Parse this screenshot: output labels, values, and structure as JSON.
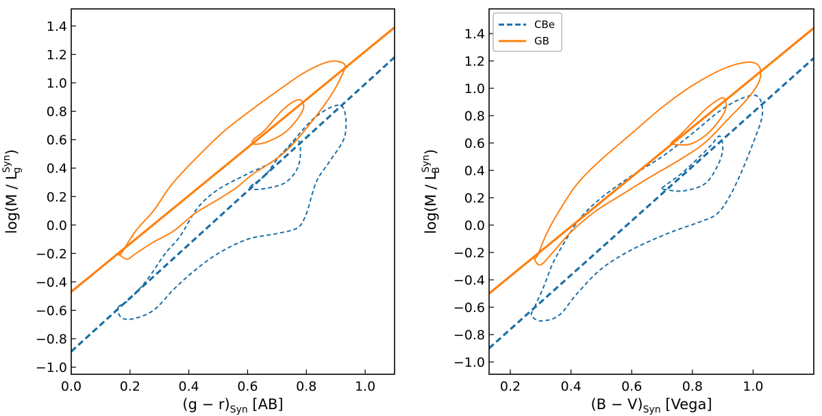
{
  "chart_data": [
    {
      "type": "line",
      "xlabel": "(g − r)",
      "xlabel_sub": "Syn",
      "xlabel_suffix": " [AB]",
      "ylabel_prefix": "log(M / L",
      "ylabel_sub": "g",
      "ylabel_sup": "Syn",
      "ylabel_suffix": ")",
      "xlim": [
        0.0,
        1.1
      ],
      "ylim": [
        -1.05,
        1.52
      ],
      "xticks": [
        0.0,
        0.2,
        0.4,
        0.6,
        0.8,
        1.0
      ],
      "yticks": [
        -1.0,
        -0.8,
        -0.6,
        -0.4,
        -0.2,
        0.0,
        0.2,
        0.4,
        0.6,
        0.8,
        1.0,
        1.2,
        1.4
      ],
      "tick_labels_x": [
        "0.0",
        "0.2",
        "0.4",
        "0.6",
        "0.8",
        "1.0"
      ],
      "tick_labels_y": [
        "−1.0",
        "−0.8",
        "−0.6",
        "−0.4",
        "−0.2",
        "0.0",
        "0.2",
        "0.4",
        "0.6",
        "0.8",
        "1.0",
        "1.2",
        "1.4"
      ],
      "series": [
        {
          "name": "CBe",
          "color": "#1a6ea5",
          "style": "dashed",
          "fit": {
            "x": [
              0.0,
              1.1
            ],
            "y": [
              -0.89,
              1.18
            ]
          },
          "contours": [
            [
              [
                0.16,
                -0.58
              ],
              [
                0.2,
                -0.52
              ],
              [
                0.26,
                -0.38
              ],
              [
                0.32,
                -0.2
              ],
              [
                0.37,
                -0.08
              ],
              [
                0.43,
                0.12
              ],
              [
                0.5,
                0.25
              ],
              [
                0.6,
                0.36
              ],
              [
                0.7,
                0.47
              ],
              [
                0.82,
                0.74
              ],
              [
                0.9,
                0.84
              ],
              [
                0.93,
                0.8
              ],
              [
                0.93,
                0.62
              ],
              [
                0.88,
                0.45
              ],
              [
                0.84,
                0.33
              ],
              [
                0.82,
                0.22
              ],
              [
                0.8,
                0.08
              ],
              [
                0.77,
                -0.02
              ],
              [
                0.7,
                -0.06
              ],
              [
                0.6,
                -0.1
              ],
              [
                0.5,
                -0.2
              ],
              [
                0.42,
                -0.32
              ],
              [
                0.35,
                -0.45
              ],
              [
                0.28,
                -0.6
              ],
              [
                0.21,
                -0.66
              ],
              [
                0.17,
                -0.65
              ]
            ],
            [
              [
                0.61,
                0.27
              ],
              [
                0.66,
                0.35
              ],
              [
                0.7,
                0.46
              ],
              [
                0.74,
                0.55
              ],
              [
                0.77,
                0.6
              ],
              [
                0.78,
                0.52
              ],
              [
                0.77,
                0.4
              ],
              [
                0.73,
                0.3
              ],
              [
                0.67,
                0.26
              ],
              [
                0.62,
                0.25
              ]
            ]
          ]
        },
        {
          "name": "GB",
          "color": "#ff7f0e",
          "style": "solid",
          "fit": {
            "x": [
              0.0,
              1.1
            ],
            "y": [
              -0.47,
              1.39
            ]
          },
          "contours": [
            [
              [
                0.17,
                -0.2
              ],
              [
                0.22,
                -0.04
              ],
              [
                0.28,
                0.1
              ],
              [
                0.34,
                0.28
              ],
              [
                0.42,
                0.46
              ],
              [
                0.52,
                0.66
              ],
              [
                0.62,
                0.82
              ],
              [
                0.72,
                0.97
              ],
              [
                0.8,
                1.08
              ],
              [
                0.88,
                1.15
              ],
              [
                0.93,
                1.13
              ],
              [
                0.92,
                1.05
              ],
              [
                0.88,
                0.9
              ],
              [
                0.8,
                0.68
              ],
              [
                0.72,
                0.5
              ],
              [
                0.62,
                0.36
              ],
              [
                0.56,
                0.26
              ],
              [
                0.5,
                0.18
              ],
              [
                0.42,
                0.08
              ],
              [
                0.35,
                -0.04
              ],
              [
                0.28,
                -0.12
              ],
              [
                0.22,
                -0.2
              ],
              [
                0.19,
                -0.24
              ],
              [
                0.16,
                -0.2
              ]
            ],
            [
              [
                0.62,
                0.6
              ],
              [
                0.66,
                0.67
              ],
              [
                0.71,
                0.79
              ],
              [
                0.75,
                0.86
              ],
              [
                0.78,
                0.88
              ],
              [
                0.79,
                0.82
              ],
              [
                0.76,
                0.72
              ],
              [
                0.72,
                0.64
              ],
              [
                0.66,
                0.58
              ],
              [
                0.62,
                0.57
              ]
            ]
          ]
        }
      ]
    },
    {
      "type": "line",
      "xlabel": "(B − V)",
      "xlabel_sub": "Syn",
      "xlabel_suffix": " [Vega]",
      "ylabel_prefix": "log(M / L",
      "ylabel_sub": "B",
      "ylabel_sup": "Syn",
      "ylabel_suffix": ")",
      "xlim": [
        0.13,
        1.2
      ],
      "ylim": [
        -1.09,
        1.58
      ],
      "xticks": [
        0.2,
        0.4,
        0.6,
        0.8,
        1.0
      ],
      "yticks": [
        -1.0,
        -0.8,
        -0.6,
        -0.4,
        -0.2,
        0.0,
        0.2,
        0.4,
        0.6,
        0.8,
        1.0,
        1.2,
        1.4
      ],
      "tick_labels_x": [
        "0.2",
        "0.4",
        "0.6",
        "0.8",
        "1.0"
      ],
      "tick_labels_y": [
        "−1.0",
        "−0.8",
        "−0.6",
        "−0.4",
        "−0.2",
        "0.0",
        "0.2",
        "0.4",
        "0.6",
        "0.8",
        "1.0",
        "1.2",
        "1.4"
      ],
      "legend": {
        "position": "top-left",
        "entries": [
          "CBe",
          "GB"
        ]
      },
      "series": [
        {
          "name": "CBe",
          "color": "#1a6ea5",
          "style": "dashed",
          "fit": {
            "x": [
              0.13,
              1.2
            ],
            "y": [
              -0.9,
              1.22
            ]
          },
          "contours": [
            [
              [
                0.28,
                -0.6
              ],
              [
                0.31,
                -0.45
              ],
              [
                0.34,
                -0.28
              ],
              [
                0.38,
                -0.12
              ],
              [
                0.43,
                0.05
              ],
              [
                0.5,
                0.2
              ],
              [
                0.6,
                0.36
              ],
              [
                0.7,
                0.5
              ],
              [
                0.8,
                0.67
              ],
              [
                0.9,
                0.85
              ],
              [
                0.98,
                0.94
              ],
              [
                1.02,
                0.93
              ],
              [
                1.03,
                0.8
              ],
              [
                1.0,
                0.6
              ],
              [
                0.96,
                0.38
              ],
              [
                0.92,
                0.2
              ],
              [
                0.88,
                0.08
              ],
              [
                0.82,
                0.02
              ],
              [
                0.72,
                -0.06
              ],
              [
                0.6,
                -0.18
              ],
              [
                0.5,
                -0.32
              ],
              [
                0.42,
                -0.5
              ],
              [
                0.36,
                -0.66
              ],
              [
                0.3,
                -0.7
              ],
              [
                0.27,
                -0.66
              ]
            ],
            [
              [
                0.7,
                0.27
              ],
              [
                0.76,
                0.37
              ],
              [
                0.81,
                0.47
              ],
              [
                0.86,
                0.58
              ],
              [
                0.89,
                0.65
              ],
              [
                0.9,
                0.55
              ],
              [
                0.88,
                0.42
              ],
              [
                0.84,
                0.3
              ],
              [
                0.77,
                0.25
              ],
              [
                0.71,
                0.26
              ]
            ]
          ]
        },
        {
          "name": "GB",
          "color": "#ff7f0e",
          "style": "solid",
          "fit": {
            "x": [
              0.13,
              1.2
            ],
            "y": [
              -0.5,
              1.44
            ]
          },
          "contours": [
            [
              [
                0.29,
                -0.22
              ],
              [
                0.32,
                -0.06
              ],
              [
                0.36,
                0.1
              ],
              [
                0.42,
                0.3
              ],
              [
                0.5,
                0.48
              ],
              [
                0.6,
                0.67
              ],
              [
                0.7,
                0.86
              ],
              [
                0.8,
                1.02
              ],
              [
                0.9,
                1.14
              ],
              [
                0.98,
                1.19
              ],
              [
                1.02,
                1.16
              ],
              [
                1.02,
                1.05
              ],
              [
                0.98,
                0.92
              ],
              [
                0.92,
                0.78
              ],
              [
                0.84,
                0.6
              ],
              [
                0.76,
                0.48
              ],
              [
                0.66,
                0.35
              ],
              [
                0.58,
                0.24
              ],
              [
                0.48,
                0.1
              ],
              [
                0.4,
                -0.05
              ],
              [
                0.34,
                -0.2
              ],
              [
                0.3,
                -0.29
              ],
              [
                0.28,
                -0.25
              ]
            ],
            [
              [
                0.73,
                0.6
              ],
              [
                0.76,
                0.66
              ],
              [
                0.8,
                0.75
              ],
              [
                0.85,
                0.86
              ],
              [
                0.9,
                0.93
              ],
              [
                0.91,
                0.85
              ],
              [
                0.88,
                0.74
              ],
              [
                0.84,
                0.65
              ],
              [
                0.79,
                0.59
              ],
              [
                0.74,
                0.59
              ]
            ]
          ]
        }
      ]
    }
  ]
}
